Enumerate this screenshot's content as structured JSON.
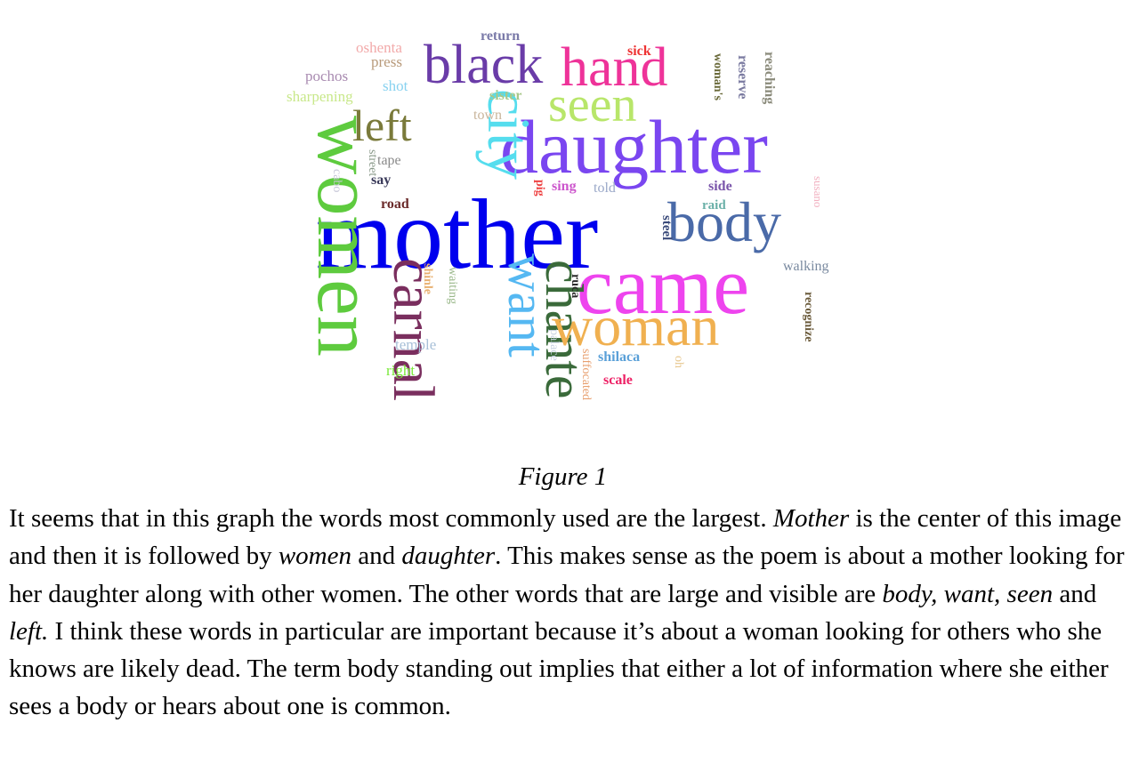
{
  "wordcloud": {
    "words": [
      {
        "id": "mother",
        "text": "mother",
        "color": "#0000ee",
        "size": 112,
        "weight": "normal",
        "rotate": false
      },
      {
        "id": "women",
        "text": "women",
        "color": "#5ecb3e",
        "size": 92,
        "weight": "normal",
        "rotate": true
      },
      {
        "id": "daughter",
        "text": "daughter",
        "color": "#7a46f0",
        "size": 86,
        "weight": "normal",
        "rotate": false
      },
      {
        "id": "came",
        "text": "came",
        "color": "#ee44ee",
        "size": 92,
        "weight": "normal",
        "rotate": false
      },
      {
        "id": "city",
        "text": "city",
        "color": "#55ddee",
        "size": 68,
        "weight": "normal",
        "rotate": true
      },
      {
        "id": "black",
        "text": "black",
        "color": "#6a3ca8",
        "size": 62,
        "weight": "normal",
        "rotate": false
      },
      {
        "id": "hand",
        "text": "hand",
        "color": "#ee3399",
        "size": 62,
        "weight": "normal",
        "rotate": false
      },
      {
        "id": "seen",
        "text": "seen",
        "color": "#b8e66a",
        "size": 56,
        "weight": "normal",
        "rotate": false
      },
      {
        "id": "body",
        "text": "body",
        "color": "#4a6aa8",
        "size": 64,
        "weight": "normal",
        "rotate": false
      },
      {
        "id": "left",
        "text": "left",
        "color": "#7a7a3a",
        "size": 50,
        "weight": "normal",
        "rotate": false
      },
      {
        "id": "carnal",
        "text": "carnal",
        "color": "#7a2e5e",
        "size": 66,
        "weight": "normal",
        "rotate": true
      },
      {
        "id": "want",
        "text": "want",
        "color": "#55b8f2",
        "size": 60,
        "weight": "normal",
        "rotate": true
      },
      {
        "id": "chante",
        "text": "chante",
        "color": "#3a6a3a",
        "size": 60,
        "weight": "normal",
        "rotate": true
      },
      {
        "id": "woman",
        "text": "woman",
        "color": "#f0b050",
        "size": 64,
        "weight": "normal",
        "rotate": false
      },
      {
        "id": "oshenta",
        "text": "oshenta",
        "color": "#f2aaaa",
        "size": 17,
        "weight": "normal",
        "rotate": false
      },
      {
        "id": "return",
        "text": "return",
        "color": "#7a7aa8",
        "size": 16,
        "weight": "bold",
        "rotate": false
      },
      {
        "id": "press",
        "text": "press",
        "color": "#b89a7a",
        "size": 17,
        "weight": "normal",
        "rotate": false
      },
      {
        "id": "pochos",
        "text": "pochos",
        "color": "#a88ab0",
        "size": 17,
        "weight": "normal",
        "rotate": false
      },
      {
        "id": "shot",
        "text": "shot",
        "color": "#88d2f0",
        "size": 17,
        "weight": "normal",
        "rotate": false
      },
      {
        "id": "sharpening",
        "text": "sharpening",
        "color": "#c8e88a",
        "size": 17,
        "weight": "normal",
        "rotate": false
      },
      {
        "id": "sick",
        "text": "sick",
        "color": "#ee3333",
        "size": 16,
        "weight": "bold",
        "rotate": false
      },
      {
        "id": "sister",
        "text": "sister",
        "color": "#a8c88a",
        "size": 16,
        "weight": "bold",
        "rotate": false
      },
      {
        "id": "town",
        "text": "town",
        "color": "#c8b49a",
        "size": 16,
        "weight": "normal",
        "rotate": false
      },
      {
        "id": "womans",
        "text": "woman's",
        "color": "#6a6a3a",
        "size": 14,
        "weight": "bold",
        "rotate": true
      },
      {
        "id": "reserve",
        "text": "reserve",
        "color": "#7a7aa0",
        "size": 16,
        "weight": "bold",
        "rotate": true
      },
      {
        "id": "reaching",
        "text": "reaching",
        "color": "#8a8a7a",
        "size": 16,
        "weight": "bold",
        "rotate": true
      },
      {
        "id": "street",
        "text": "street",
        "color": "#8a9a8a",
        "size": 14,
        "weight": "normal",
        "rotate": true
      },
      {
        "id": "tape",
        "text": "tape",
        "color": "#8a8a8a",
        "size": 16,
        "weight": "normal",
        "rotate": false
      },
      {
        "id": "say",
        "text": "say",
        "color": "#3a3a5a",
        "size": 16,
        "weight": "bold",
        "rotate": false
      },
      {
        "id": "cabo",
        "text": "cabo",
        "color": "#c8c8d8",
        "size": 14,
        "weight": "normal",
        "rotate": true
      },
      {
        "id": "road",
        "text": "road",
        "color": "#6a2a2a",
        "size": 16,
        "weight": "bold",
        "rotate": false
      },
      {
        "id": "pig",
        "text": "pig",
        "color": "#ee4444",
        "size": 14,
        "weight": "bold",
        "rotate": true
      },
      {
        "id": "sing",
        "text": "sing",
        "color": "#cc55cc",
        "size": 16,
        "weight": "bold",
        "rotate": false
      },
      {
        "id": "told",
        "text": "told",
        "color": "#9aa8c8",
        "size": 16,
        "weight": "normal",
        "rotate": false
      },
      {
        "id": "side",
        "text": "side",
        "color": "#7a55aa",
        "size": 16,
        "weight": "bold",
        "rotate": false
      },
      {
        "id": "raid",
        "text": "raid",
        "color": "#6ab0a8",
        "size": 15,
        "weight": "bold",
        "rotate": false
      },
      {
        "id": "susano",
        "text": "susano",
        "color": "#f2b0c0",
        "size": 13,
        "weight": "normal",
        "rotate": true
      },
      {
        "id": "steel",
        "text": "steel",
        "color": "#3a4a7a",
        "size": 15,
        "weight": "bold",
        "rotate": true
      },
      {
        "id": "walking",
        "text": "walking",
        "color": "#7a8aa0",
        "size": 16,
        "weight": "normal",
        "rotate": false
      },
      {
        "id": "shinle",
        "text": "shinle",
        "color": "#e8b070",
        "size": 14,
        "weight": "bold",
        "rotate": true
      },
      {
        "id": "waiting",
        "text": "waiting",
        "color": "#9ab88a",
        "size": 14,
        "weight": "normal",
        "rotate": true
      },
      {
        "id": "ruca",
        "text": "ruca",
        "color": "#2a2a2a",
        "size": 14,
        "weight": "bold",
        "rotate": true
      },
      {
        "id": "recognize",
        "text": "recognize",
        "color": "#6a5a3a",
        "size": 14,
        "weight": "bold",
        "rotate": true
      },
      {
        "id": "temple",
        "text": "temple",
        "color": "#a8c0d8",
        "size": 17,
        "weight": "normal",
        "rotate": false
      },
      {
        "id": "right",
        "text": "right",
        "color": "#7ae83a",
        "size": 17,
        "weight": "normal",
        "rotate": false
      },
      {
        "id": "palace",
        "text": "palace",
        "color": "#c8d2e2",
        "size": 14,
        "weight": "normal",
        "rotate": true
      },
      {
        "id": "suffocated",
        "text": "suffocated",
        "color": "#e8a070",
        "size": 14,
        "weight": "normal",
        "rotate": true
      },
      {
        "id": "shilaca",
        "text": "shilaca",
        "color": "#5aa0d8",
        "size": 16,
        "weight": "bold",
        "rotate": false
      },
      {
        "id": "oh",
        "text": "oh",
        "color": "#e8c890",
        "size": 14,
        "weight": "normal",
        "rotate": true
      },
      {
        "id": "scale",
        "text": "scale",
        "color": "#ee2266",
        "size": 16,
        "weight": "bold",
        "rotate": false
      }
    ]
  },
  "caption": "Figure 1",
  "paragraph": {
    "p1": "It seems that in this graph the words most commonly used are the largest. ",
    "e1": "Mother",
    "p2": " is the center of this image and then it is followed by ",
    "e2": "women",
    "p3": " and ",
    "e3": "daughter",
    "p4": ". This makes sense as the poem is about a mother looking for her daughter along with other women. The other words that are large and visible are ",
    "e4": "body, want, seen",
    "p5": " and ",
    "e5": "left.",
    "p6": " I think these words in particular are important because it’s about a woman looking for others who she knows are likely dead. The term body standing out implies that either a lot of information where she either sees a body or hears about one is common."
  }
}
